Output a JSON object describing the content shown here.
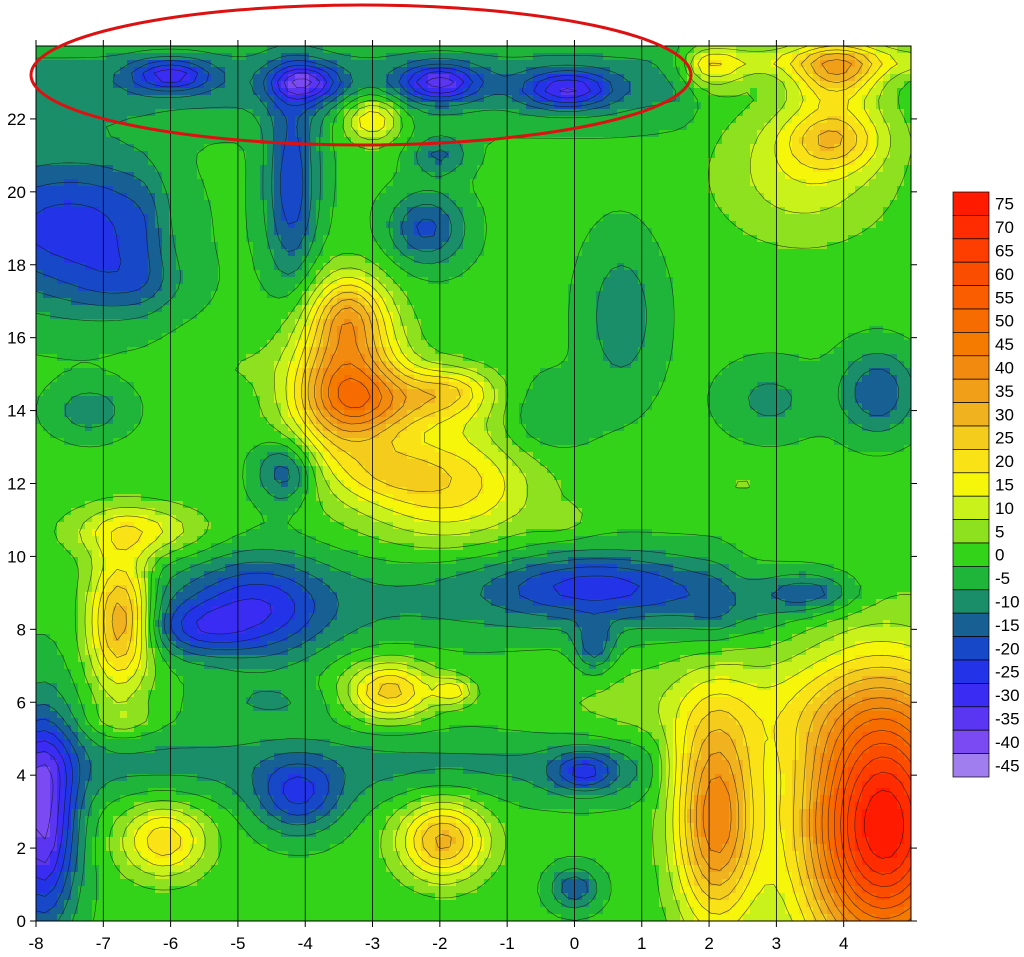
{
  "chart_data": {
    "type": "heatmap",
    "subtype": "filled-contour",
    "title": "",
    "xlabel": "",
    "ylabel": "",
    "xlim": [
      -8,
      5
    ],
    "ylim": [
      0,
      24
    ],
    "x_ticks": [
      "-8",
      "-7",
      "-6",
      "-5",
      "-4",
      "-3",
      "-2",
      "-1",
      "0",
      "1",
      "2",
      "3",
      "4"
    ],
    "y_ticks": [
      "0",
      "2",
      "4",
      "6",
      "8",
      "10",
      "12",
      "14",
      "16",
      "18",
      "20",
      "22"
    ],
    "vertical_grid": "at each integer x",
    "colorbar": {
      "placement": "right",
      "levels": [
        "75",
        "70",
        "65",
        "60",
        "55",
        "50",
        "45",
        "40",
        "35",
        "30",
        "25",
        "20",
        "15",
        "10",
        "5",
        "0",
        "-5",
        "-10",
        "-15",
        "-20",
        "-25",
        "-30",
        "-35",
        "-40",
        "-45"
      ],
      "colors": [
        "#ff1a00",
        "#fe2c00",
        "#fd3e00",
        "#fb4d00",
        "#f95d00",
        "#f66c00",
        "#f47a00",
        "#f28a10",
        "#f19f18",
        "#f0b21e",
        "#f3cc1c",
        "#f9e316",
        "#f6f60a",
        "#c9f21a",
        "#8de11f",
        "#33d31a",
        "#1fb43a",
        "#1a8e68",
        "#176094",
        "#1648c8",
        "#2233e8",
        "#3a2cf2",
        "#5a35f2",
        "#7c4af2",
        "#a07ef0"
      ]
    },
    "highlight": {
      "shape": "ellipse",
      "color": "#dd1111",
      "encloses": "top row of blue minima, y≈23, x from -8 to 1.7"
    },
    "blobs": [
      {
        "x": -3.4,
        "y": 14.8,
        "rx": 0.55,
        "ry": 1.5,
        "value": 40
      },
      {
        "x": -2.5,
        "y": 14.3,
        "rx": 0.9,
        "ry": 0.6,
        "value": 20
      },
      {
        "x": -1.8,
        "y": 14.6,
        "rx": 0.4,
        "ry": 0.4,
        "value": 10
      },
      {
        "x": -3.35,
        "y": 16.7,
        "rx": 0.35,
        "ry": 0.7,
        "value": 18
      },
      {
        "x": -1.9,
        "y": 12.0,
        "rx": 0.9,
        "ry": 1.1,
        "value": 22
      },
      {
        "x": -2.7,
        "y": 12.3,
        "rx": 0.5,
        "ry": 0.5,
        "value": 8
      },
      {
        "x": -6.75,
        "y": 8.2,
        "rx": 0.32,
        "ry": 1.3,
        "value": 32
      },
      {
        "x": -6.5,
        "y": 10.7,
        "rx": 0.7,
        "ry": 0.5,
        "value": 16
      },
      {
        "x": -2.75,
        "y": 6.3,
        "rx": 0.45,
        "ry": 0.55,
        "value": 26
      },
      {
        "x": -1.8,
        "y": 6.3,
        "rx": 0.2,
        "ry": 0.25,
        "value": 15
      },
      {
        "x": -6.1,
        "y": 2.2,
        "rx": 0.45,
        "ry": 0.7,
        "value": 22
      },
      {
        "x": -1.95,
        "y": 2.2,
        "rx": 0.45,
        "ry": 0.75,
        "value": 30
      },
      {
        "x": -3.0,
        "y": 22.0,
        "rx": 0.3,
        "ry": 0.45,
        "value": 22
      },
      {
        "x": 2.1,
        "y": 2.8,
        "rx": 0.42,
        "ry": 2.0,
        "value": 42
      },
      {
        "x": 4.6,
        "y": 2.6,
        "rx": 0.85,
        "ry": 2.6,
        "value": 78
      },
      {
        "x": 3.0,
        "y": 5.8,
        "rx": 2.2,
        "ry": 1.1,
        "value": 10
      },
      {
        "x": 3.9,
        "y": 23.3,
        "rx": 0.45,
        "ry": 0.6,
        "value": 28
      },
      {
        "x": 3.85,
        "y": 21.5,
        "rx": 0.5,
        "ry": 0.6,
        "value": 22
      },
      {
        "x": 3.4,
        "y": 20.5,
        "rx": 0.9,
        "ry": 1.3,
        "value": 12
      },
      {
        "x": 2.0,
        "y": 23.3,
        "rx": 0.35,
        "ry": 0.4,
        "value": 12
      },
      {
        "x": -6.0,
        "y": 23.2,
        "rx": 0.4,
        "ry": 0.3,
        "value": -22
      },
      {
        "x": -4.0,
        "y": 23.0,
        "rx": 0.35,
        "ry": 0.35,
        "value": -25
      },
      {
        "x": -2.0,
        "y": 23.0,
        "rx": 0.4,
        "ry": 0.35,
        "value": -26
      },
      {
        "x": -0.1,
        "y": 22.8,
        "rx": 0.45,
        "ry": 0.35,
        "value": -24
      },
      {
        "x": -4.2,
        "y": 20.2,
        "rx": 0.28,
        "ry": 1.9,
        "value": -20
      },
      {
        "x": -2.2,
        "y": 19.0,
        "rx": 0.4,
        "ry": 0.7,
        "value": -18
      },
      {
        "x": -2.0,
        "y": 21.0,
        "rx": 0.3,
        "ry": 0.4,
        "value": -12
      },
      {
        "x": -7.5,
        "y": 19.0,
        "rx": 1.0,
        "ry": 1.6,
        "value": -14
      },
      {
        "x": -4.7,
        "y": 8.5,
        "rx": 0.7,
        "ry": 1.0,
        "value": -20
      },
      {
        "x": -5.6,
        "y": 8.0,
        "rx": 0.5,
        "ry": 0.5,
        "value": -14
      },
      {
        "x": 0.3,
        "y": 9.2,
        "rx": 1.1,
        "ry": 0.6,
        "value": -18
      },
      {
        "x": 0.3,
        "y": 7.5,
        "rx": 0.2,
        "ry": 0.5,
        "value": -14
      },
      {
        "x": -4.3,
        "y": 12.3,
        "rx": 0.3,
        "ry": 0.6,
        "value": -16
      },
      {
        "x": 4.5,
        "y": 14.5,
        "rx": 0.4,
        "ry": 0.8,
        "value": -16
      },
      {
        "x": 3.5,
        "y": 9.0,
        "rx": 0.5,
        "ry": 0.4,
        "value": -15
      },
      {
        "x": -4.1,
        "y": 3.4,
        "rx": 0.45,
        "ry": 0.7,
        "value": -20
      },
      {
        "x": 0.15,
        "y": 4.1,
        "rx": 0.35,
        "ry": 0.4,
        "value": -18
      },
      {
        "x": 0.0,
        "y": 0.9,
        "rx": 0.25,
        "ry": 0.4,
        "value": -16
      },
      {
        "x": -7.9,
        "y": 2.8,
        "rx": 0.35,
        "ry": 2.0,
        "value": -38
      },
      {
        "x": 0.7,
        "y": 16.6,
        "rx": 0.4,
        "ry": 1.5,
        "value": -10
      },
      {
        "x": -7.2,
        "y": 14.0,
        "rx": 0.4,
        "ry": 0.5,
        "value": -10
      },
      {
        "x": -0.5,
        "y": 13.8,
        "rx": 0.5,
        "ry": 0.8,
        "value": -8
      },
      {
        "x": -6.6,
        "y": 17.5,
        "rx": 0.6,
        "ry": 0.6,
        "value": -8
      },
      {
        "x": -4.5,
        "y": 6.0,
        "rx": 0.7,
        "ry": 0.4,
        "value": -6
      },
      {
        "x": 2.4,
        "y": 8.5,
        "rx": 0.6,
        "ry": 0.6,
        "value": -7
      },
      {
        "x": 2.9,
        "y": 14.3,
        "rx": 0.5,
        "ry": 0.7,
        "value": -8
      },
      {
        "x": -6.7,
        "y": 5.5,
        "rx": 0.35,
        "ry": 0.3,
        "value": 6
      },
      {
        "x": -5.0,
        "y": 15.2,
        "rx": 0.5,
        "ry": 0.4,
        "value": 3
      },
      {
        "x": 2.5,
        "y": 12.0,
        "rx": 0.3,
        "ry": 0.3,
        "value": 4
      },
      {
        "x": -0.2,
        "y": 11.0,
        "rx": 0.3,
        "ry": 0.3,
        "value": 5
      }
    ],
    "bands": [
      {
        "y": 23.0,
        "ry": 0.8,
        "x0": -8,
        "x1": 1.5,
        "value": -9
      },
      {
        "y": 4.3,
        "ry": 0.7,
        "x0": -8,
        "x1": 1.0,
        "value": -8
      },
      {
        "y": 8.8,
        "ry": 0.9,
        "x0": -6.0,
        "x1": 2.0,
        "value": -7
      },
      {
        "y": 19.0,
        "ry": 1.3,
        "x0": -8,
        "x1": -6.5,
        "value": -10
      },
      {
        "y": 23.6,
        "ry": 0.3,
        "x0": 2.0,
        "x1": 5.0,
        "value": 10
      }
    ]
  }
}
